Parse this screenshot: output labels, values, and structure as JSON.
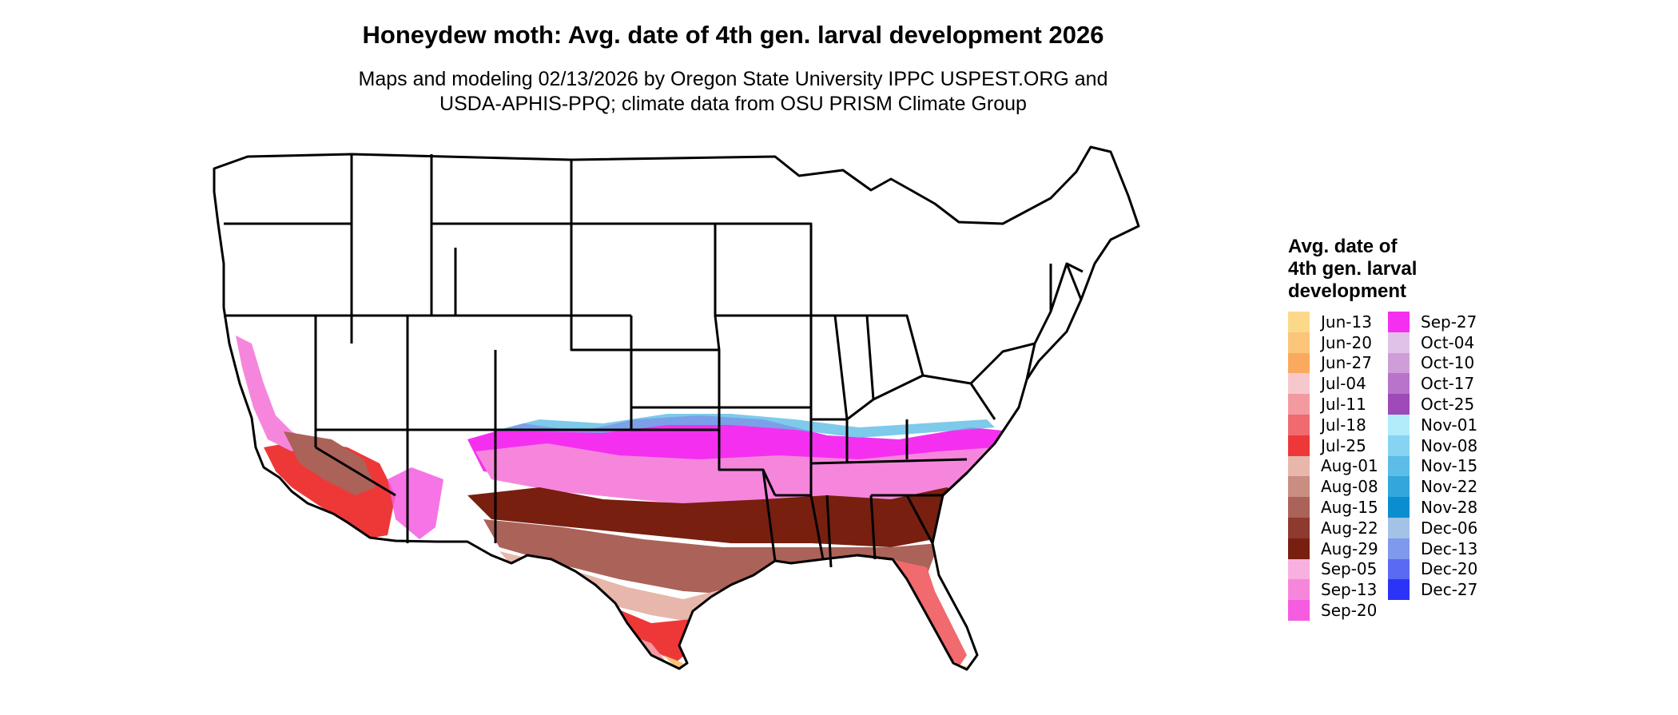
{
  "title": "Honeydew moth: Avg. date of 4th gen. larval development 2026",
  "subtitle_line1": "Maps and modeling 02/13/2026 by Oregon State University IPPC USPEST.ORG and",
  "subtitle_line2": "USDA-APHIS-PPQ; climate data from OSU PRISM Climate Group",
  "legend": {
    "title_line1": "Avg. date of",
    "title_line2": "4th gen. larval",
    "title_line3": "development",
    "items": [
      {
        "label": "Jun-13",
        "color": "#fcd98a"
      },
      {
        "label": "Jun-20",
        "color": "#fbc57a"
      },
      {
        "label": "Jun-27",
        "color": "#f9aa5e"
      },
      {
        "label": "Jul-04",
        "color": "#f6c8cc"
      },
      {
        "label": "Jul-11",
        "color": "#f39aa0"
      },
      {
        "label": "Jul-18",
        "color": "#f06a6e"
      },
      {
        "label": "Jul-25",
        "color": "#ee3838"
      },
      {
        "label": "Aug-01",
        "color": "#e6b7aa"
      },
      {
        "label": "Aug-08",
        "color": "#c98d82"
      },
      {
        "label": "Aug-15",
        "color": "#ab6258"
      },
      {
        "label": "Aug-22",
        "color": "#8e3a2e"
      },
      {
        "label": "Aug-29",
        "color": "#781f10"
      },
      {
        "label": "Sep-05",
        "color": "#f7b0df"
      },
      {
        "label": "Sep-13",
        "color": "#f686dc"
      },
      {
        "label": "Sep-20",
        "color": "#f55ce0"
      },
      {
        "label": "Sep-27",
        "color": "#f52ff0"
      },
      {
        "label": "Oct-04",
        "color": "#e0c2e8"
      },
      {
        "label": "Oct-10",
        "color": "#cf9ed9"
      },
      {
        "label": "Oct-17",
        "color": "#b874cb"
      },
      {
        "label": "Oct-25",
        "color": "#9e4ab8"
      },
      {
        "label": "Nov-01",
        "color": "#b2ecfb"
      },
      {
        "label": "Nov-08",
        "color": "#87d4f2"
      },
      {
        "label": "Nov-15",
        "color": "#5cbde6"
      },
      {
        "label": "Nov-22",
        "color": "#33a6dc"
      },
      {
        "label": "Nov-28",
        "color": "#0a8ed0"
      },
      {
        "label": "Dec-06",
        "color": "#a4c2e6"
      },
      {
        "label": "Dec-13",
        "color": "#7f99ec"
      },
      {
        "label": "Dec-20",
        "color": "#5a6af2"
      },
      {
        "label": "Dec-27",
        "color": "#2b33f8"
      }
    ]
  },
  "map": {
    "background_fill": "#ffffff",
    "border_color": "#000000"
  }
}
